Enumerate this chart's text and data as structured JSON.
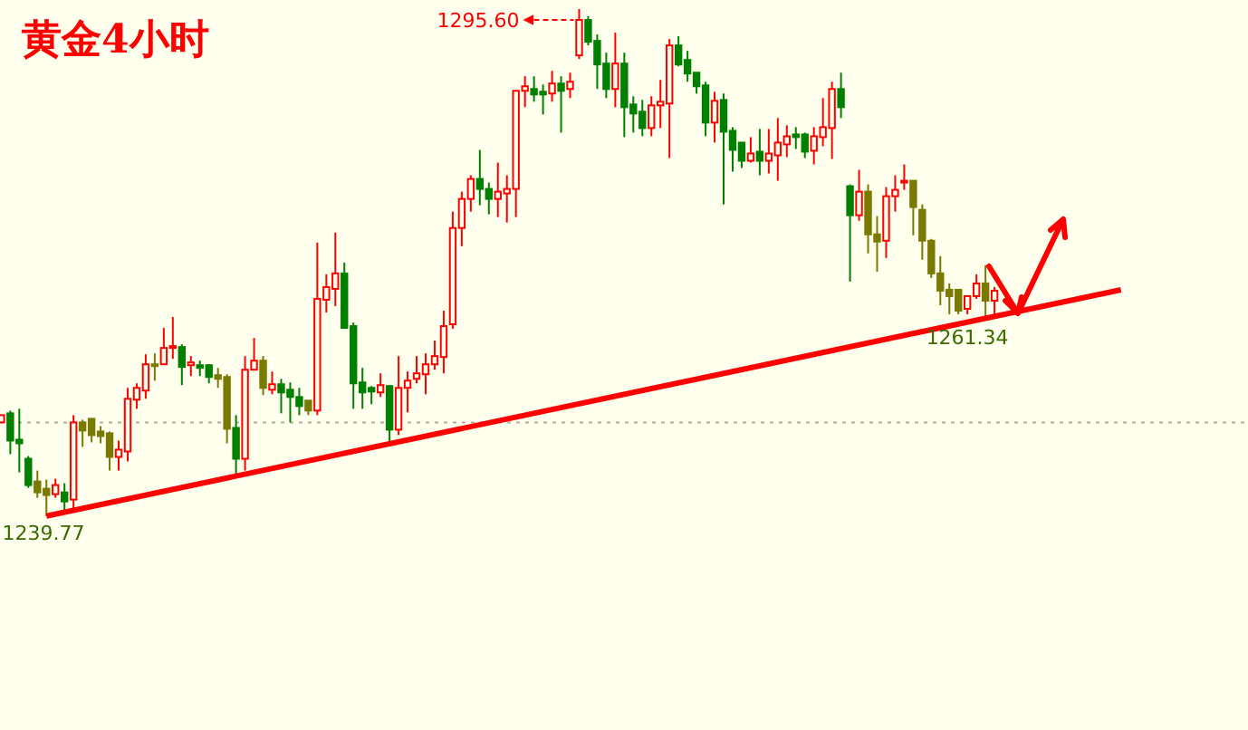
{
  "chart_data": {
    "type": "candlestick",
    "title": "黄金4小时",
    "categories": [
      null,
      null,
      null,
      null,
      null,
      null,
      null,
      null,
      null,
      null,
      null,
      null,
      null,
      null,
      null,
      null,
      null,
      null,
      null,
      null,
      null,
      null,
      null,
      null,
      null,
      null,
      null,
      null,
      null,
      null,
      null,
      null,
      null,
      null,
      null,
      null,
      null,
      null,
      null,
      null,
      null,
      null,
      null,
      null,
      null,
      null,
      null,
      null,
      null,
      null,
      null,
      null,
      null,
      null,
      null,
      null,
      null,
      null,
      null,
      null,
      null,
      null,
      null,
      null,
      null,
      null,
      null,
      null,
      null,
      null,
      null,
      null,
      null,
      null,
      null,
      null,
      null,
      null,
      null,
      null,
      null,
      null,
      null,
      null,
      null,
      null,
      null,
      null,
      null,
      null,
      null,
      null,
      null,
      null,
      null,
      null,
      null,
      null,
      null,
      null,
      null,
      null,
      null,
      null,
      null,
      null,
      null,
      null,
      null,
      null,
      null,
      null,
      null,
      null,
      null,
      null,
      null,
      null,
      null,
      null,
      null,
      null,
      null,
      null,
      null
    ],
    "ohlc": [
      [
        1250.1,
        1250.9,
        1250.1,
        1250.9
      ],
      [
        1251.1,
        1251.4,
        1246.6,
        1248.1
      ],
      [
        1248.2,
        1251.6,
        1244.6,
        1247.8
      ],
      [
        1246.1,
        1246.4,
        1242.9,
        1243.2
      ],
      [
        1243.6,
        1244.8,
        1241.8,
        1242.4
      ],
      [
        1242.8,
        1243.8,
        1239.77,
        1242.1
      ],
      [
        1242.2,
        1243.9,
        1241.8,
        1243.2
      ],
      [
        1242.4,
        1243.4,
        1240.4,
        1241.4
      ],
      [
        1241.6,
        1250.9,
        1240.6,
        1250.1
      ],
      [
        1250.1,
        1250.4,
        1247.4,
        1249.2
      ],
      [
        1250.5,
        1250.5,
        1247.9,
        1248.7
      ],
      [
        1249.1,
        1249.7,
        1247.8,
        1248.6
      ],
      [
        1248.9,
        1249.1,
        1244.8,
        1246.3
      ],
      [
        1246.3,
        1248.1,
        1244.8,
        1247.1
      ],
      [
        1246.9,
        1253.9,
        1245.8,
        1252.7
      ],
      [
        1252.6,
        1254.4,
        1251.6,
        1253.9
      ],
      [
        1253.6,
        1257.6,
        1252.7,
        1256.5
      ],
      [
        1256.5,
        1257.7,
        1254.7,
        1256.3
      ],
      [
        1256.5,
        1260.5,
        1256.5,
        1258.3
      ],
      [
        1258.3,
        1261.7,
        1257.1,
        1258.5
      ],
      [
        1258.4,
        1258.7,
        1254.2,
        1256.2
      ],
      [
        1256.4,
        1257.4,
        1255.2,
        1256.7
      ],
      [
        1256.4,
        1256.9,
        1255.2,
        1256.1
      ],
      [
        1256.4,
        1256.5,
        1254.4,
        1255.1
      ],
      [
        1255.3,
        1256.1,
        1253.9,
        1254.9
      ],
      [
        1255.1,
        1255.4,
        1247.8,
        1249.4
      ],
      [
        1249.5,
        1250.9,
        1244.2,
        1246.1
      ],
      [
        1246.1,
        1257.4,
        1244.8,
        1255.9
      ],
      [
        1255.9,
        1259.4,
        1255.9,
        1256.9
      ],
      [
        1256.9,
        1257.4,
        1253.1,
        1253.9
      ],
      [
        1253.7,
        1255.7,
        1253.2,
        1254.3
      ],
      [
        1254.3,
        1254.9,
        1251.1,
        1253.4
      ],
      [
        1253.7,
        1254.5,
        1250.1,
        1252.9
      ],
      [
        1252.9,
        1253.9,
        1250.9,
        1251.9
      ],
      [
        1252.5,
        1252.5,
        1250.9,
        1251.4
      ],
      [
        1251.4,
        1269.9,
        1250.9,
        1263.7
      ],
      [
        1263.6,
        1266.4,
        1262.2,
        1265.0
      ],
      [
        1264.8,
        1271.0,
        1262.9,
        1266.5
      ],
      [
        1266.5,
        1267.7,
        1260.4,
        1260.5
      ],
      [
        1260.7,
        1261.1,
        1251.6,
        1254.4
      ],
      [
        1254.5,
        1256.1,
        1251.6,
        1253.4
      ],
      [
        1253.9,
        1254.1,
        1252.1,
        1253.5
      ],
      [
        1253.4,
        1255.5,
        1252.9,
        1254.2
      ],
      [
        1254.1,
        1254.2,
        1247.8,
        1249.3
      ],
      [
        1249.3,
        1257.4,
        1248.7,
        1253.9
      ],
      [
        1253.9,
        1255.7,
        1251.2,
        1254.7
      ],
      [
        1254.9,
        1257.4,
        1254.4,
        1255.5
      ],
      [
        1255.4,
        1257.7,
        1253.2,
        1256.5
      ],
      [
        1256.5,
        1259.1,
        1255.9,
        1257.4
      ],
      [
        1257.3,
        1262.4,
        1255.5,
        1260.7
      ],
      [
        1260.9,
        1273.3,
        1260.4,
        1271.5
      ],
      [
        1271.5,
        1275.5,
        1269.5,
        1274.7
      ],
      [
        1274.7,
        1277.3,
        1273.3,
        1276.9
      ],
      [
        1276.9,
        1280.1,
        1274.0,
        1275.8
      ],
      [
        1275.8,
        1276.5,
        1273.0,
        1274.7
      ],
      [
        1274.7,
        1278.7,
        1272.7,
        1275.5
      ],
      [
        1275.3,
        1277.3,
        1272.1,
        1275.8
      ],
      [
        1275.8,
        1286.6,
        1272.7,
        1286.6
      ],
      [
        1286.6,
        1288.2,
        1284.8,
        1287.1
      ],
      [
        1286.8,
        1288.2,
        1285.4,
        1286.2
      ],
      [
        1286.5,
        1287.3,
        1284.0,
        1286.2
      ],
      [
        1286.3,
        1288.8,
        1285.4,
        1287.4
      ],
      [
        1287.4,
        1288.2,
        1282.0,
        1286.6
      ],
      [
        1286.8,
        1288.6,
        1285.8,
        1287.6
      ],
      [
        1290.5,
        1295.6,
        1290.1,
        1294.4
      ],
      [
        1294.4,
        1294.8,
        1291.6,
        1292.0
      ],
      [
        1292.1,
        1292.8,
        1286.8,
        1289.5
      ],
      [
        1289.6,
        1290.8,
        1285.8,
        1286.8
      ],
      [
        1286.8,
        1293.0,
        1284.8,
        1289.6
      ],
      [
        1289.6,
        1290.8,
        1281.5,
        1284.8
      ],
      [
        1285.1,
        1286.0,
        1282.0,
        1284.1
      ],
      [
        1284.3,
        1285.6,
        1281.6,
        1282.5
      ],
      [
        1282.5,
        1286.0,
        1281.6,
        1285.0
      ],
      [
        1285.0,
        1287.8,
        1282.5,
        1285.4
      ],
      [
        1285.2,
        1292.3,
        1279.2,
        1291.6
      ],
      [
        1291.6,
        1292.6,
        1289.3,
        1289.5
      ],
      [
        1290.0,
        1291.0,
        1287.6,
        1288.5
      ],
      [
        1288.6,
        1288.6,
        1286.3,
        1287.1
      ],
      [
        1287.2,
        1287.6,
        1281.6,
        1283.1
      ],
      [
        1283.1,
        1286.5,
        1280.9,
        1285.5
      ],
      [
        1285.6,
        1286.3,
        1274.1,
        1282.1
      ],
      [
        1282.2,
        1282.6,
        1277.7,
        1280.1
      ],
      [
        1280.9,
        1280.9,
        1278.1,
        1278.9
      ],
      [
        1278.9,
        1281.5,
        1278.7,
        1279.7
      ],
      [
        1279.9,
        1282.4,
        1277.3,
        1278.9
      ],
      [
        1278.9,
        1282.4,
        1277.5,
        1279.7
      ],
      [
        1279.5,
        1283.6,
        1276.7,
        1280.9
      ],
      [
        1280.7,
        1282.8,
        1279.3,
        1281.6
      ],
      [
        1281.8,
        1282.6,
        1280.2,
        1281.5
      ],
      [
        1281.8,
        1282.0,
        1279.2,
        1279.9
      ],
      [
        1280.0,
        1282.6,
        1278.5,
        1281.6
      ],
      [
        1281.5,
        1285.8,
        1280.5,
        1282.6
      ],
      [
        1282.5,
        1287.6,
        1279.1,
        1286.8
      ],
      [
        1286.8,
        1288.6,
        1283.6,
        1284.8
      ],
      [
        1276.1,
        1276.3,
        1265.6,
        1272.9
      ],
      [
        1272.9,
        1277.9,
        1272.3,
        1275.5
      ],
      [
        1275.5,
        1276.3,
        1268.7,
        1270.8
      ],
      [
        1270.8,
        1272.8,
        1266.7,
        1270.0
      ],
      [
        1270.1,
        1276.0,
        1268.2,
        1275.0
      ],
      [
        1275.0,
        1277.3,
        1273.3,
        1275.7
      ],
      [
        1276.5,
        1278.5,
        1275.7,
        1276.7
      ],
      [
        1276.7,
        1276.7,
        1270.7,
        1273.8
      ],
      [
        1273.5,
        1274.1,
        1268.0,
        1270.1
      ],
      [
        1270.1,
        1270.3,
        1266.0,
        1266.5
      ],
      [
        1266.5,
        1268.4,
        1263.0,
        1264.6
      ],
      [
        1264.7,
        1265.4,
        1262.0,
        1264.0
      ],
      [
        1264.7,
        1264.7,
        1262.0,
        1262.4
      ],
      [
        1262.6,
        1264.0,
        1262.0,
        1264.0
      ],
      [
        1264.0,
        1266.4,
        1263.7,
        1265.4
      ],
      [
        1265.4,
        1267.4,
        1261.34,
        1263.5
      ],
      [
        1263.5,
        1265.0,
        1262.0,
        1264.6
      ],
      null,
      null,
      null,
      null,
      null,
      null,
      null,
      null,
      null,
      null,
      null,
      null,
      null,
      null
    ],
    "colors": [
      "#ff0000",
      "#008000",
      "#008000",
      "#008000",
      "#7a7a00",
      "#7a7a00",
      "#ff0000",
      "#008000",
      "#ff0000",
      "#7a7a00",
      "#7a7a00",
      "#7a7a00",
      "#7a7a00",
      "#ff0000",
      "#ff0000",
      "#ff0000",
      "#ff0000",
      "#7a7a00",
      "#ff0000",
      "#ff0000",
      "#008000",
      "#ff0000",
      "#008000",
      "#008000",
      "#7a7a00",
      "#7a7a00",
      "#008000",
      "#ff0000",
      "#ff0000",
      "#7a7a00",
      "#ff0000",
      "#008000",
      "#008000",
      "#008000",
      "#7a7a00",
      "#ff0000",
      "#ff0000",
      "#ff0000",
      "#008000",
      "#008000",
      "#008000",
      "#008000",
      "#ff0000",
      "#008000",
      "#ff0000",
      "#ff0000",
      "#ff0000",
      "#ff0000",
      "#ff0000",
      "#ff0000",
      "#ff0000",
      "#ff0000",
      "#ff0000",
      "#008000",
      "#008000",
      "#ff0000",
      "#ff0000",
      "#ff0000",
      "#ff0000",
      "#008000",
      "#008000",
      "#ff0000",
      "#008000",
      "#ff0000",
      "#ff0000",
      "#008000",
      "#008000",
      "#008000",
      "#ff0000",
      "#008000",
      "#008000",
      "#008000",
      "#ff0000",
      "#ff0000",
      "#ff0000",
      "#008000",
      "#008000",
      "#008000",
      "#008000",
      "#ff0000",
      "#008000",
      "#008000",
      "#008000",
      "#ff0000",
      "#008000",
      "#ff0000",
      "#ff0000",
      "#ff0000",
      "#008000",
      "#008000",
      "#ff0000",
      "#ff0000",
      "#ff0000",
      "#008000",
      "#008000",
      "#ff0000",
      "#7a7a00",
      "#7a7a00",
      "#ff0000",
      "#ff0000",
      "#ff0000",
      "#7a7a00",
      "#7a7a00",
      "#7a7a00",
      "#7a7a00",
      "#7a7a00",
      "#7a7a00",
      "#ff0000",
      "#ff0000",
      "#7a7a00",
      "#ff0000",
      null,
      null,
      null,
      null,
      null,
      null,
      null,
      null,
      null,
      null,
      null,
      null,
      null,
      null
    ],
    "series": [
      {
        "type": "line",
        "values": [
          null,
          null,
          null,
          null,
          null,
          1239.8,
          null,
          null,
          null,
          null,
          null,
          null,
          null,
          null,
          null,
          null,
          null,
          null,
          null,
          null,
          null,
          null,
          null,
          null,
          null,
          null,
          null,
          null,
          null,
          null,
          null,
          null,
          null,
          null,
          null,
          null,
          null,
          null,
          null,
          null,
          null,
          null,
          null,
          null,
          null,
          null,
          null,
          null,
          null,
          null,
          null,
          null,
          null,
          null,
          null,
          null,
          null,
          null,
          null,
          null,
          null,
          null,
          null,
          null,
          null,
          null,
          null,
          null,
          null,
          null,
          null,
          null,
          null,
          null,
          null,
          null,
          null,
          null,
          null,
          null,
          null,
          null,
          null,
          null,
          null,
          null,
          null,
          null,
          null,
          null,
          null,
          null,
          null,
          null,
          null,
          null,
          null,
          null,
          null,
          null,
          null,
          null,
          null,
          null,
          null,
          null,
          null,
          null,
          null,
          null,
          null,
          null,
          null,
          null,
          null,
          null,
          null,
          null,
          null,
          null,
          null,
          null,
          null,
          null,
          1264.7
        ],
        "color": "#ff0000"
      }
    ],
    "ref_lines": [
      {
        "axis": "y",
        "value": 1250.1,
        "color": "#b8ab98",
        "line_style": "dotted"
      }
    ],
    "annotations": [
      "1295.60",
      "1239.77",
      "1261.34"
    ]
  }
}
